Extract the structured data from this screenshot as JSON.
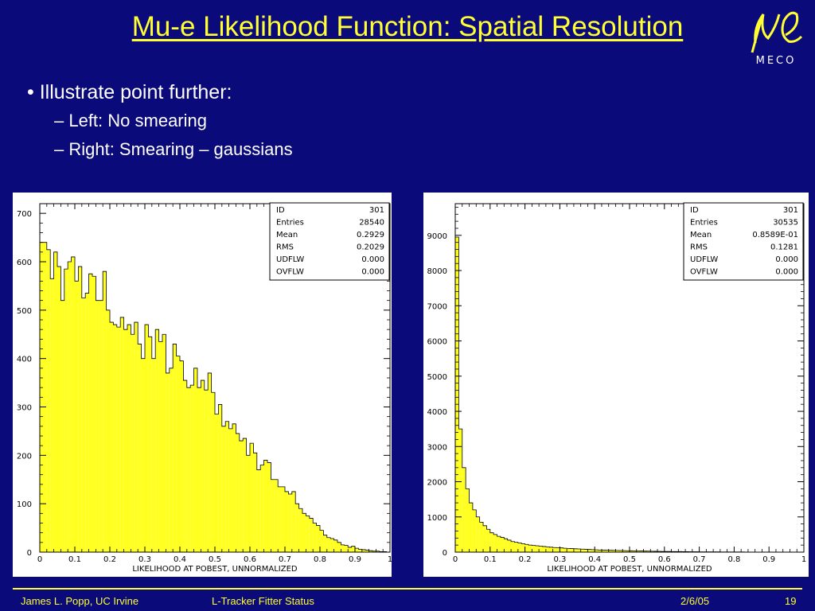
{
  "slide": {
    "title": "Mu-e Likelihood Function: Spatial Resolution",
    "bullets": [
      {
        "level": 1,
        "text": "• Illustrate point further:"
      },
      {
        "level": 2,
        "text": "– Left: No smearing"
      },
      {
        "level": 2,
        "text": "– Right: Smearing – gaussians"
      }
    ],
    "logo_text": "MECO",
    "footer": {
      "author": "James L. Popp, UC Irvine",
      "topic": "L-Tracker Fitter Status",
      "date": "2/6/05",
      "page": "19"
    }
  },
  "colors": {
    "background": "#0a0a7a",
    "accent": "#ffff33",
    "fill": "#ffff22"
  },
  "chart_data": [
    {
      "type": "bar",
      "xlabel": "LIKELIHOOD AT POBEST,          UNNORMALIZED",
      "xlim": [
        0,
        1
      ],
      "ylim": [
        0,
        720
      ],
      "xticks": [
        "0",
        "0.1",
        "0.2",
        "0.3",
        "0.4",
        "0.5",
        "0.6",
        "0.7",
        "0.8",
        "0.9",
        "1"
      ],
      "yticks": [
        "0",
        "100",
        "200",
        "300",
        "400",
        "500",
        "600",
        "700"
      ],
      "ytick_values": [
        0,
        100,
        200,
        300,
        400,
        500,
        600,
        700
      ],
      "bin_width": 0.01,
      "values": [
        640,
        640,
        625,
        565,
        620,
        590,
        520,
        585,
        600,
        610,
        560,
        590,
        525,
        535,
        575,
        570,
        520,
        520,
        580,
        500,
        475,
        470,
        465,
        485,
        460,
        470,
        450,
        475,
        430,
        400,
        470,
        445,
        400,
        460,
        435,
        450,
        370,
        380,
        430,
        405,
        395,
        355,
        340,
        345,
        380,
        340,
        355,
        335,
        370,
        330,
        285,
        305,
        260,
        270,
        255,
        265,
        245,
        230,
        235,
        200,
        225,
        205,
        170,
        180,
        190,
        185,
        150,
        150,
        135,
        135,
        125,
        120,
        125,
        100,
        90,
        80,
        75,
        70,
        60,
        55,
        45,
        35,
        30,
        28,
        25,
        20,
        15,
        14,
        10,
        12,
        8,
        6,
        5,
        4,
        3,
        2,
        2,
        1,
        1,
        0
      ],
      "stats": [
        [
          "ID",
          "301"
        ],
        [
          "Entries",
          "28540"
        ],
        [
          "Mean",
          "0.2929"
        ],
        [
          "RMS",
          "0.2029"
        ],
        [
          "UDFLW",
          "0.000"
        ],
        [
          "OVFLW",
          "0.000"
        ]
      ]
    },
    {
      "type": "bar",
      "xlabel": "LIKELIHOOD AT POBEST,          UNNORMALIZED",
      "xlim": [
        0,
        1
      ],
      "ylim": [
        0,
        9900
      ],
      "xticks": [
        "0",
        "0.1",
        "0.2",
        "0.3",
        "0.4",
        "0.5",
        "0.6",
        "0.7",
        "0.8",
        "0.9",
        "1"
      ],
      "yticks": [
        "0",
        "1000",
        "2000",
        "3000",
        "4000",
        "5000",
        "6000",
        "7000",
        "8000",
        "9000"
      ],
      "ytick_values": [
        0,
        1000,
        2000,
        3000,
        4000,
        5000,
        6000,
        7000,
        8000,
        9000
      ],
      "bin_width": 0.01,
      "values": [
        8950,
        3500,
        2400,
        1800,
        1400,
        1200,
        1000,
        850,
        750,
        650,
        550,
        500,
        450,
        420,
        380,
        340,
        300,
        280,
        260,
        240,
        220,
        200,
        190,
        180,
        170,
        160,
        150,
        140,
        130,
        125,
        120,
        110,
        105,
        100,
        95,
        90,
        85,
        80,
        75,
        70,
        65,
        60,
        58,
        55,
        52,
        50,
        48,
        45,
        42,
        40,
        38,
        36,
        34,
        32,
        30,
        28,
        26,
        24,
        22,
        20,
        19,
        18,
        17,
        16,
        15,
        14,
        13,
        12,
        11,
        10,
        9,
        9,
        8,
        8,
        7,
        7,
        6,
        6,
        5,
        5,
        4,
        4,
        4,
        3,
        3,
        3,
        3,
        2,
        2,
        2,
        2,
        2,
        2,
        1,
        1,
        1,
        1,
        1,
        1,
        1
      ],
      "stats": [
        [
          "ID",
          "301"
        ],
        [
          "Entries",
          "30535"
        ],
        [
          "Mean",
          "0.8589E-01"
        ],
        [
          "RMS",
          "0.1281"
        ],
        [
          "UDFLW",
          "0.000"
        ],
        [
          "OVFLW",
          "0.000"
        ]
      ]
    }
  ]
}
